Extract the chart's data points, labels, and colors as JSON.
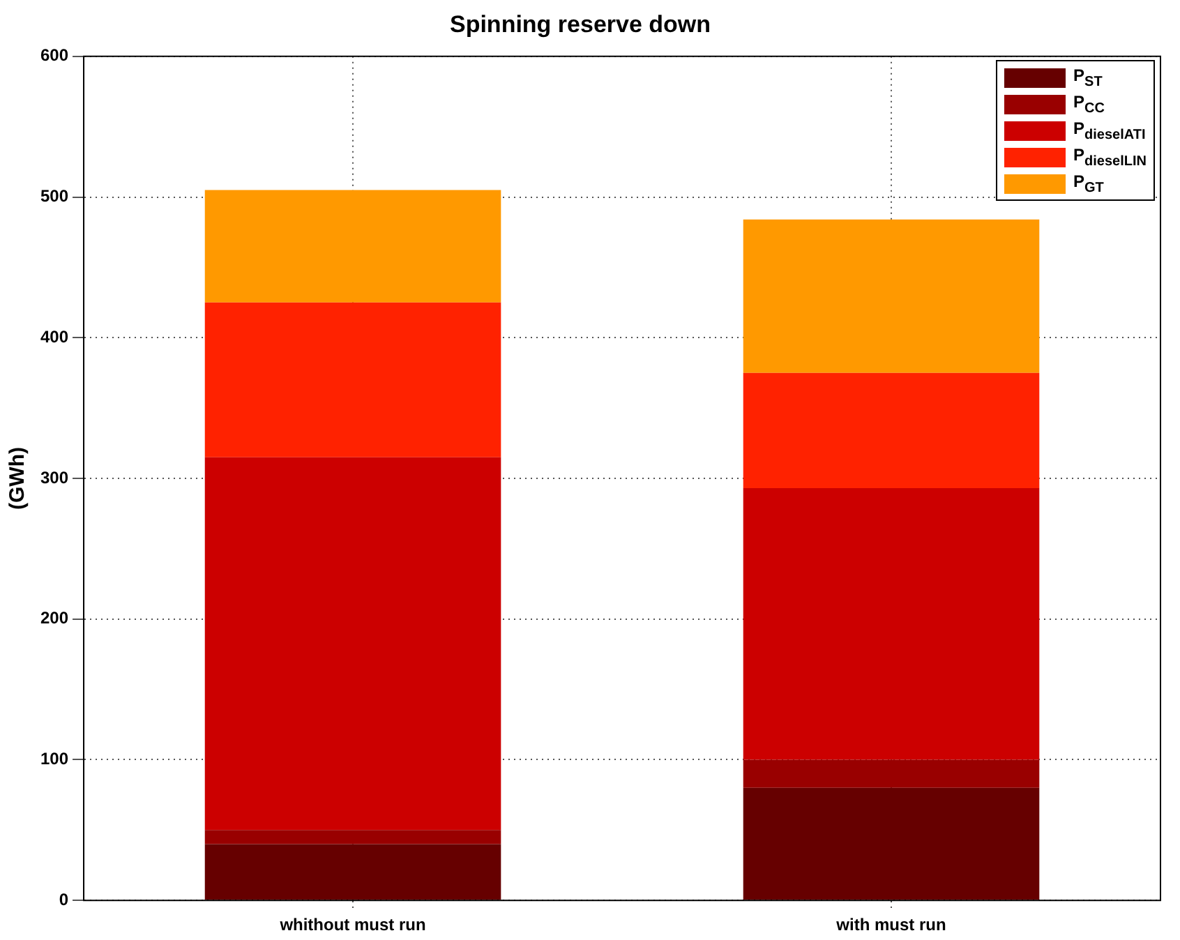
{
  "chart_data": {
    "type": "bar",
    "title": "Spinning reserve down",
    "ylabel": "(GWh)",
    "categories": [
      "whithout must run",
      "with must run"
    ],
    "stacked": true,
    "ylim": [
      0,
      600
    ],
    "yticks": [
      0,
      100,
      200,
      300,
      400,
      500,
      600
    ],
    "grid": true,
    "legend": "top right",
    "series": [
      {
        "name": "P$_{ST}$",
        "color": "#660000",
        "values": [
          40,
          80
        ]
      },
      {
        "name": "P$_{CC}$",
        "color": "#990000",
        "values": [
          10,
          20
        ]
      },
      {
        "name": "P$_{dieselATI}$",
        "color": "#cc0000",
        "values": [
          265,
          193
        ]
      },
      {
        "name": "P$_{dieselLIN}$",
        "color": "#ff2200",
        "values": [
          110,
          82
        ]
      },
      {
        "name": "P$_{GT}$",
        "color": "#ff9900",
        "values": [
          80,
          109
        ]
      }
    ]
  }
}
